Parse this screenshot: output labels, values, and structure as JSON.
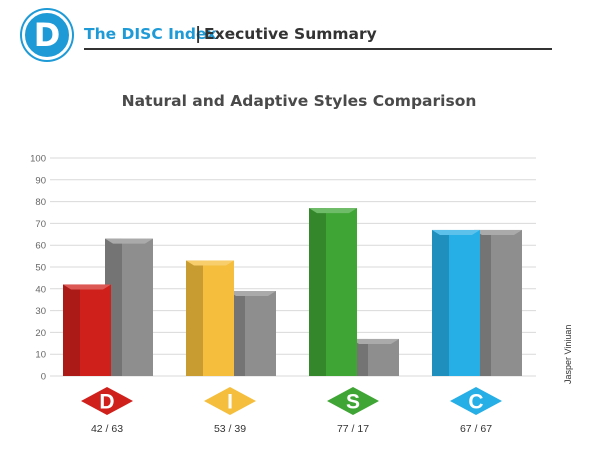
{
  "header": {
    "logo_letter": "D",
    "brand": "The DISC Index",
    "separator": "|",
    "section": "Executive Summary"
  },
  "side_label": "Jasper Viniuan",
  "colors": {
    "brand": "#1e9ad6",
    "D": "#d0201c",
    "I": "#f5be3c",
    "S": "#3fa535",
    "C": "#26aee6",
    "adaptive": "#8e8e8e"
  },
  "chart_data": {
    "type": "bar",
    "title": "Natural and Adaptive Styles Comparison",
    "xlabel": "",
    "ylabel": "",
    "ylim": [
      0,
      100
    ],
    "yticks": [
      0,
      10,
      20,
      30,
      40,
      50,
      60,
      70,
      80,
      90,
      100
    ],
    "grid": true,
    "categories": [
      "D",
      "I",
      "S",
      "C"
    ],
    "category_labels": [
      "42 / 63",
      "53 / 39",
      "77 / 17",
      "67 / 67"
    ],
    "series": [
      {
        "values": [
          42,
          53,
          77,
          67
        ]
      },
      {
        "values": [
          63,
          39,
          17,
          67
        ]
      }
    ]
  }
}
